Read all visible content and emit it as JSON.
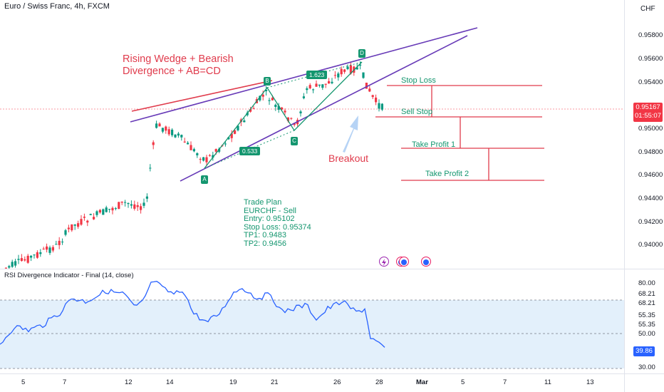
{
  "header": {
    "symbol": "Euro / Swiss Franc, 4h, FXCM",
    "currency": "CHF"
  },
  "price_axis": {
    "ticks": [
      "0.95800",
      "0.95600",
      "0.95400",
      "0.95000",
      "0.94800",
      "0.94600",
      "0.94400",
      "0.94200",
      "0.94000"
    ]
  },
  "current_price": {
    "value": "0.95167",
    "countdown": "01:55:07"
  },
  "time_axis": {
    "ticks": [
      "5",
      "7",
      "12",
      "14",
      "19",
      "21",
      "26",
      "28",
      "Mar",
      "5",
      "7",
      "11",
      "13"
    ]
  },
  "annotations": {
    "title": "Rising Wedge + Bearish Divergence + AB=CD",
    "breakout": "Breakout",
    "levels": {
      "stop_loss": "Stop Loss",
      "sell_stop": "Sell Stop",
      "tp1": "Take Profit 1",
      "tp2": "Take Profit 2"
    },
    "points": {
      "a": "A",
      "b": "B",
      "c": "C",
      "d": "D"
    },
    "ratios": {
      "ab": "0.533",
      "cd": "1.623"
    }
  },
  "trade_plan": [
    "Trade Plan",
    "EURCHF - Sell",
    "Entry: 0.95102",
    "Stop Loss: 0.95374",
    "TP1: 0.9483",
    "TP2: 0.9456"
  ],
  "rsi": {
    "title": "RSI Divergence Indicator - Final (14, close)",
    "ticks": [
      "80.00",
      "68.21",
      "68.21",
      "55.35",
      "55.35",
      "50.00",
      "30.00"
    ],
    "current": "39.86"
  },
  "colors": {
    "bull": "#089981",
    "bear": "#f23645",
    "wedge": "#673ab7",
    "level": "#e03b4c",
    "rsi_line": "#2962ff",
    "rsi_band": "#e3f0fb"
  },
  "icons": [
    "bolt-icon",
    "dividends-icon",
    "earnings-icon"
  ]
}
